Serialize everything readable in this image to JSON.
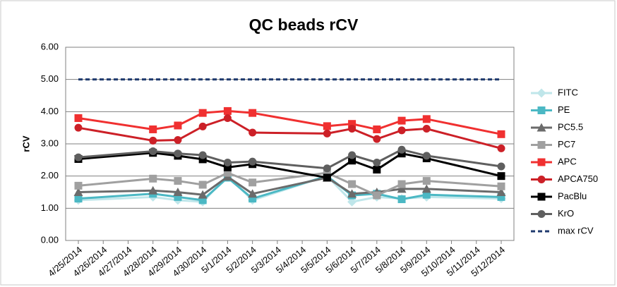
{
  "chart_data": {
    "type": "line",
    "title": "QC beads rCV",
    "y_label": "rCV",
    "x": [
      "4/25/2014",
      "4/28/2014",
      "4/29/2014",
      "4/30/2014",
      "5/1/2014",
      "5/2/2014",
      "5/5/2014",
      "5/6/2014",
      "5/7/2014",
      "5/8/2014",
      "5/9/2014",
      "5/12/2014"
    ],
    "xlim": [
      "4/25/2014",
      "5/12/2014"
    ],
    "xticks": [
      "4/25/2014",
      "4/26/2014",
      "4/27/2014",
      "4/28/2014",
      "4/29/2014",
      "4/30/2014",
      "5/1/2014",
      "5/2/2014",
      "5/3/2014",
      "5/4/2014",
      "5/5/2014",
      "5/6/2014",
      "5/7/2014",
      "5/8/2014",
      "5/9/2014",
      "5/10/2014",
      "5/11/2014",
      "5/12/2014"
    ],
    "ylim": [
      0,
      6
    ],
    "yticks": [
      {
        "value": 0,
        "label": "0.00"
      },
      {
        "value": 1,
        "label": "1.00"
      },
      {
        "value": 2,
        "label": "2.00"
      },
      {
        "value": 3,
        "label": "3.00"
      },
      {
        "value": 4,
        "label": "4.00"
      },
      {
        "value": 5,
        "label": "5.00"
      },
      {
        "value": 6,
        "label": "6.00"
      }
    ],
    "grid": true,
    "legend": "right",
    "series": [
      {
        "name": "FITC",
        "color": "#bfe6ea",
        "marker": "diamond",
        "values": [
          1.25,
          1.35,
          1.25,
          1.2,
          2.0,
          1.25,
          2.0,
          1.2,
          1.35,
          1.3,
          1.35,
          1.3
        ]
      },
      {
        "name": "PE",
        "color": "#4bb8c4",
        "marker": "square",
        "values": [
          1.3,
          1.45,
          1.35,
          1.25,
          1.95,
          1.3,
          2.0,
          1.4,
          1.45,
          1.28,
          1.42,
          1.35
        ]
      },
      {
        "name": "PC5.5",
        "color": "#6b6b6b",
        "marker": "triangle",
        "values": [
          1.5,
          1.55,
          1.5,
          1.42,
          1.98,
          1.45,
          1.95,
          1.45,
          1.5,
          1.6,
          1.6,
          1.5
        ]
      },
      {
        "name": "PC7",
        "color": "#a0a0a0",
        "marker": "square",
        "values": [
          1.7,
          1.92,
          1.85,
          1.73,
          2.1,
          1.8,
          2.1,
          1.75,
          1.4,
          1.75,
          1.85,
          1.68
        ]
      },
      {
        "name": "APC",
        "color": "#f03030",
        "marker": "square",
        "values": [
          3.8,
          3.45,
          3.57,
          3.96,
          4.02,
          3.96,
          3.55,
          3.62,
          3.45,
          3.72,
          3.77,
          3.3
        ]
      },
      {
        "name": "APCA750",
        "color": "#cc2027",
        "marker": "circle",
        "values": [
          3.5,
          3.1,
          3.12,
          3.54,
          3.8,
          3.35,
          3.32,
          3.47,
          3.15,
          3.42,
          3.47,
          2.86
        ]
      },
      {
        "name": "PacBlu",
        "color": "#000000",
        "marker": "square",
        "values": [
          2.53,
          2.72,
          2.63,
          2.52,
          2.27,
          2.37,
          1.95,
          2.48,
          2.2,
          2.7,
          2.55,
          2.0
        ]
      },
      {
        "name": "KrO",
        "color": "#5f5f5f",
        "marker": "circle",
        "values": [
          2.58,
          2.77,
          2.7,
          2.65,
          2.42,
          2.45,
          2.24,
          2.65,
          2.42,
          2.82,
          2.63,
          2.3
        ]
      },
      {
        "name": "max rCV",
        "color": "#1f3a6e",
        "dashed": true,
        "x": [
          "4/25/2014",
          "5/12/2014"
        ],
        "values": [
          5,
          5
        ]
      }
    ]
  }
}
